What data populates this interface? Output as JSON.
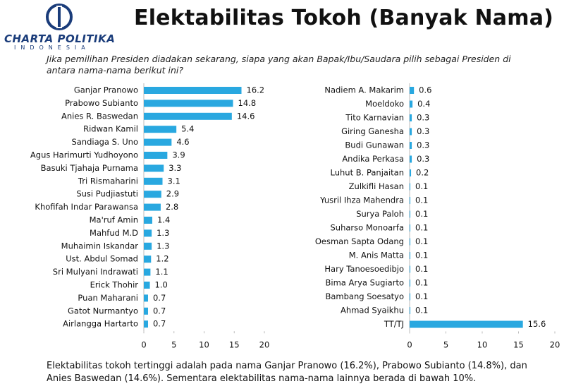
{
  "logo": {
    "name": "CHARTA POLITIKA",
    "tagline": "INDONESIA"
  },
  "title": "Elektabilitas Tokoh (Banyak Nama)",
  "question": "Jika pemilihan Presiden diadakan sekarang, siapa yang akan Bapak/Ibu/Saudara pilih sebagai Presiden di antara nama-nama berikut ini?",
  "footer": "Elektabilitas tokoh tertinggi adalah pada nama Ganjar Pranowo (16.2%), Prabowo Subianto (14.8%), dan Anies Baswedan (14.6%). Sementara elektabilitas nama-nama lainnya berada di bawah 10%.",
  "chart_data": [
    {
      "type": "bar",
      "orientation": "horizontal",
      "color": "#29a8e0",
      "categories": [
        "Ganjar Pranowo",
        "Prabowo Subianto",
        "Anies R. Baswedan",
        "Ridwan Kamil",
        "Sandiaga S. Uno",
        "Agus Harimurti Yudhoyono",
        "Basuki Tjahaja Purnama",
        "Tri Rismaharini",
        "Susi Pudjiastuti",
        "Khofifah Indar Parawansa",
        "Ma'ruf Amin",
        "Mahfud M.D",
        "Muhaimin Iskandar",
        "Ust. Abdul Somad",
        "Sri Mulyani Indrawati",
        "Erick Thohir",
        "Puan Maharani",
        "Gatot Nurmantyo",
        "Airlangga Hartarto"
      ],
      "values": [
        16.2,
        14.8,
        14.6,
        5.4,
        4.6,
        3.9,
        3.3,
        3.1,
        2.9,
        2.8,
        1.4,
        1.3,
        1.3,
        1.2,
        1.1,
        1.0,
        0.7,
        0.7,
        0.7
      ],
      "value_labels": [
        "16.2",
        "14.8",
        "14.6",
        "5.4",
        "4.6",
        "3.9",
        "3.3",
        "3.1",
        "2.9",
        "2.8",
        "1.4",
        "1.3",
        "1.3",
        "1.2",
        "1.1",
        "1.0",
        "0.7",
        "0.7",
        "0.7"
      ],
      "xlim": [
        0,
        20
      ],
      "xticks": [
        0,
        5,
        10,
        15,
        20
      ]
    },
    {
      "type": "bar",
      "orientation": "horizontal",
      "color": "#29a8e0",
      "categories": [
        "Nadiem A. Makarim",
        "Moeldoko",
        "Tito Karnavian",
        "Giring Ganesha",
        "Budi Gunawan",
        "Andika Perkasa",
        "Luhut B. Panjaitan",
        "Zulkifli Hasan",
        "Yusril Ihza Mahendra",
        "Surya Paloh",
        "Suharso Monoarfa",
        "Oesman Sapta Odang",
        "M. Anis Matta",
        "Hary Tanoesoedibjo",
        "Bima Arya Sugiarto",
        "Bambang Soesatyo",
        "Ahmad Syaikhu",
        "TT/TJ"
      ],
      "values": [
        0.6,
        0.4,
        0.3,
        0.3,
        0.3,
        0.3,
        0.2,
        0.1,
        0.1,
        0.1,
        0.1,
        0.1,
        0.1,
        0.1,
        0.1,
        0.1,
        0.1,
        15.6
      ],
      "xlim": [
        0,
        20
      ],
      "xticks": [
        0,
        5,
        10,
        15,
        20
      ]
    }
  ]
}
